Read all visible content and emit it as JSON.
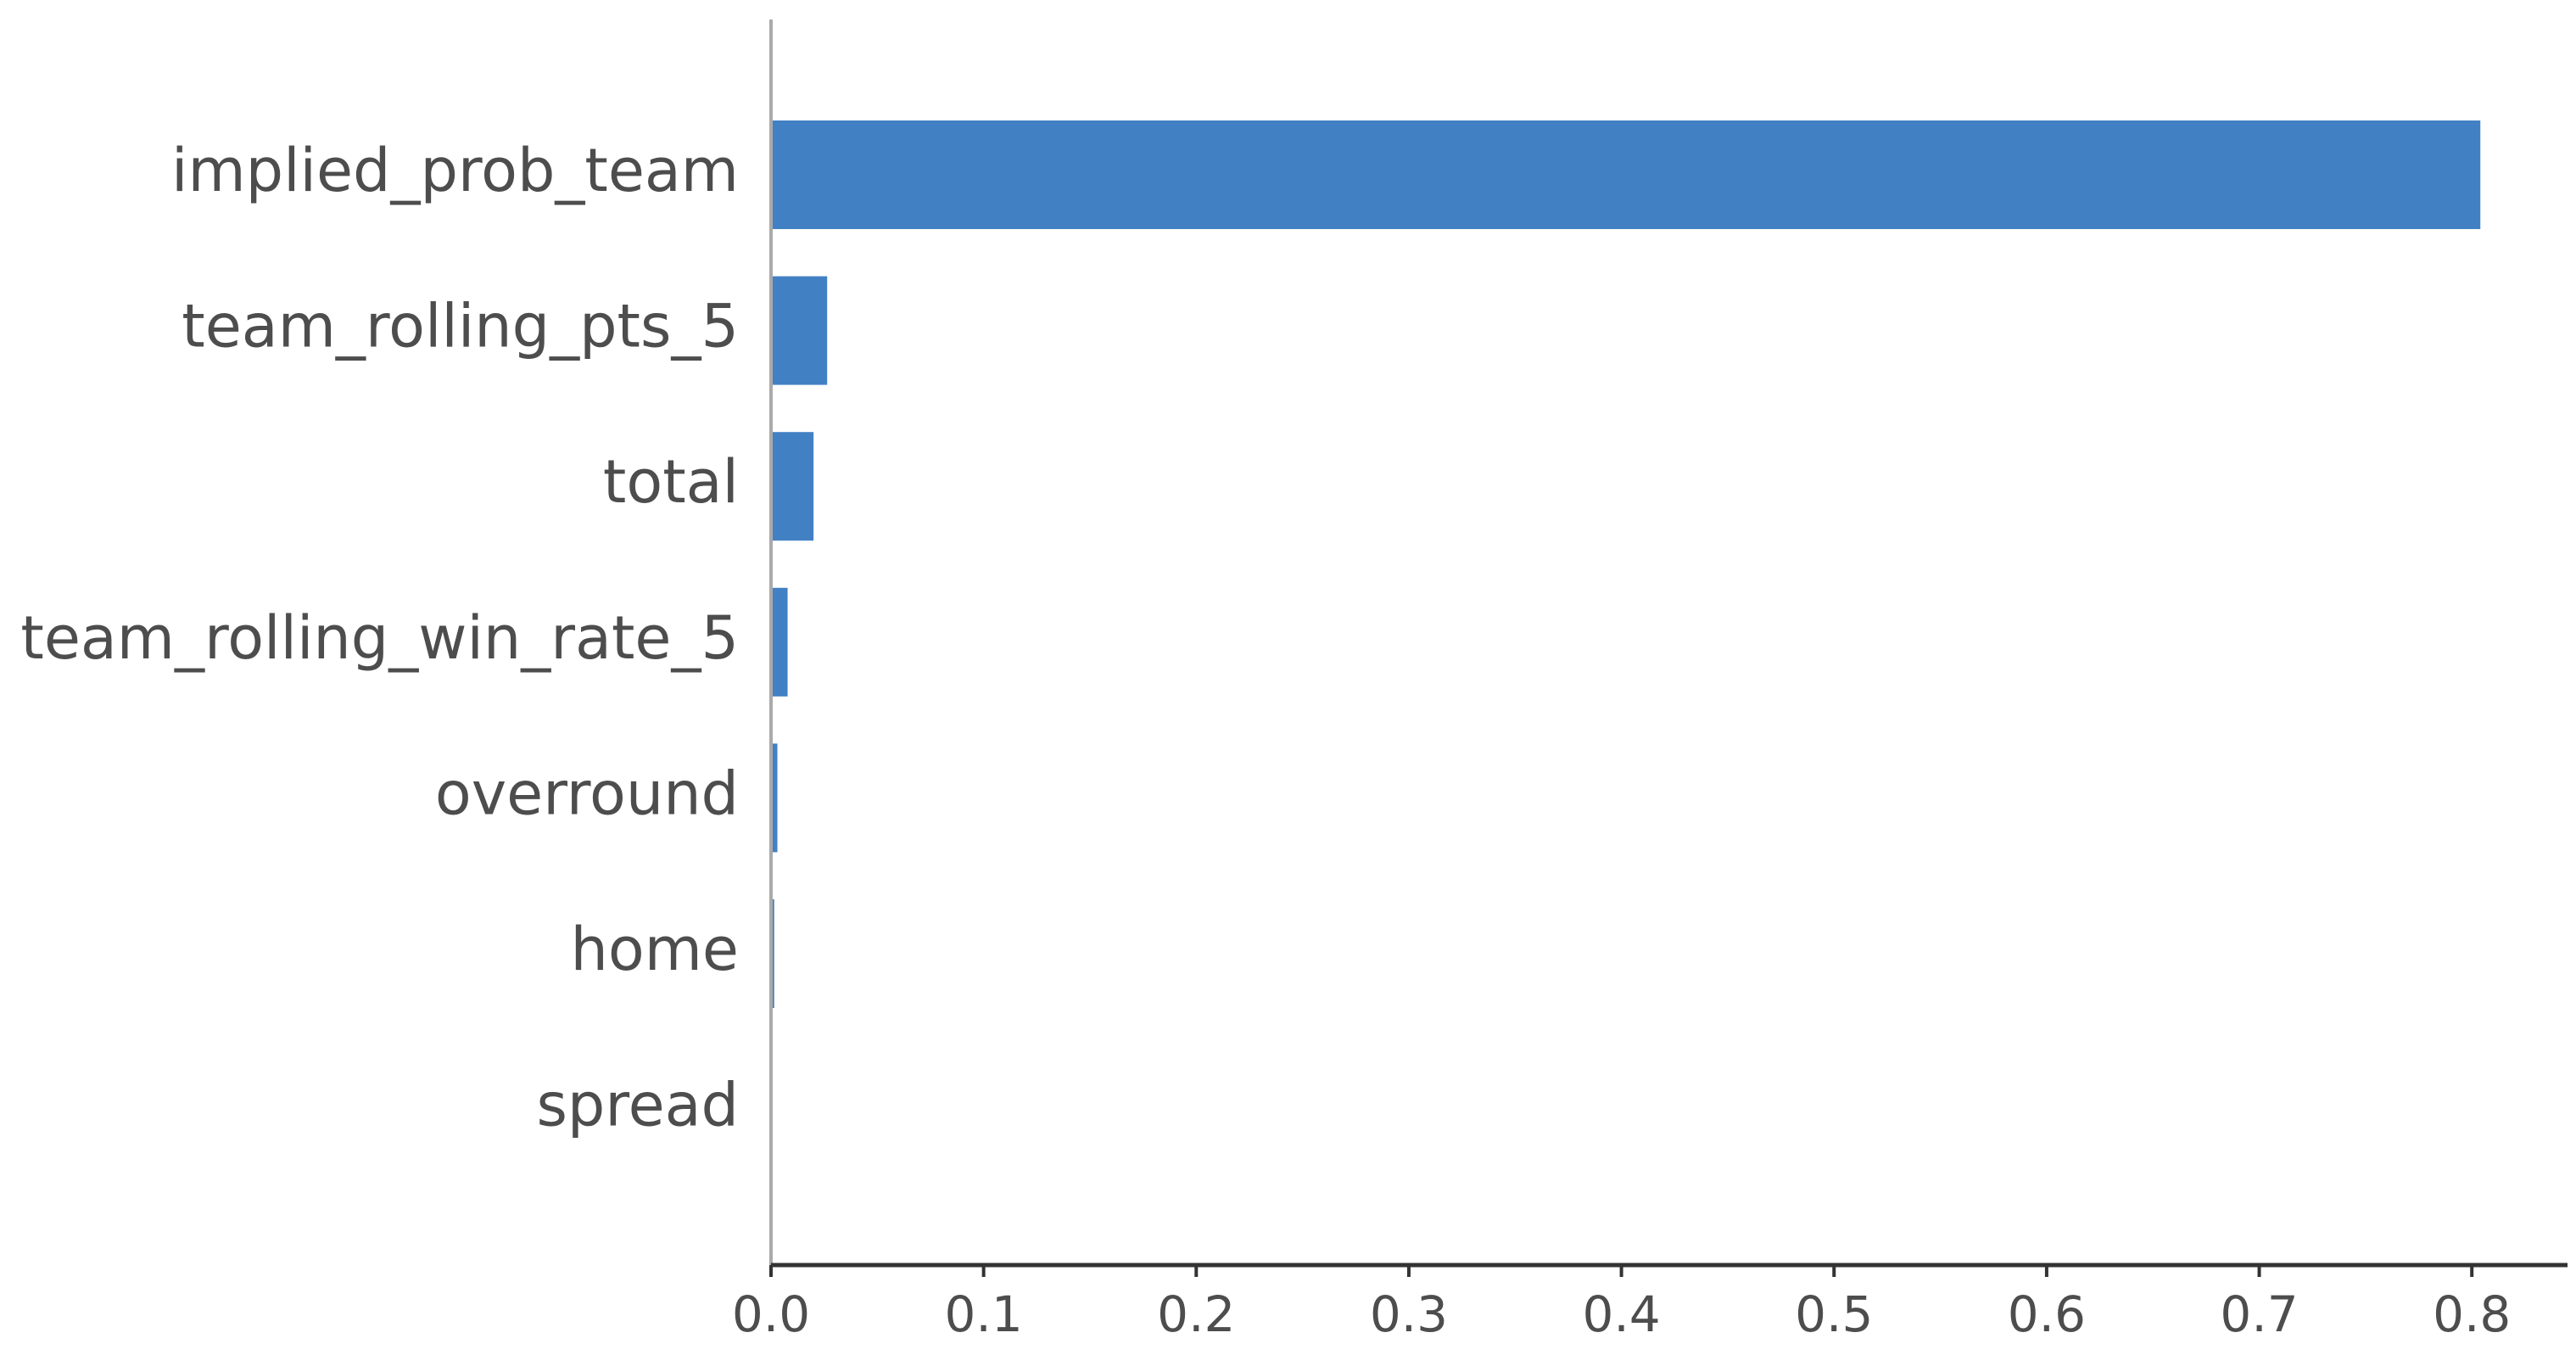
{
  "chart_data": {
    "type": "barh",
    "categories": [
      "implied_prob_team",
      "team_rolling_pts_5",
      "total",
      "team_rolling_win_rate_5",
      "overround",
      "home",
      "spread"
    ],
    "values": [
      0.804,
      0.0264,
      0.02,
      0.0078,
      0.003,
      0.0015,
      0.0008
    ],
    "color": "#4280c4",
    "xlim": [
      0,
      0.845
    ],
    "xticks": [
      {
        "value": 0,
        "label": "0.0"
      },
      0.1,
      0.2,
      0.3,
      0.4,
      0.5,
      0.6,
      0.7,
      0.8
    ],
    "grid": false
  }
}
